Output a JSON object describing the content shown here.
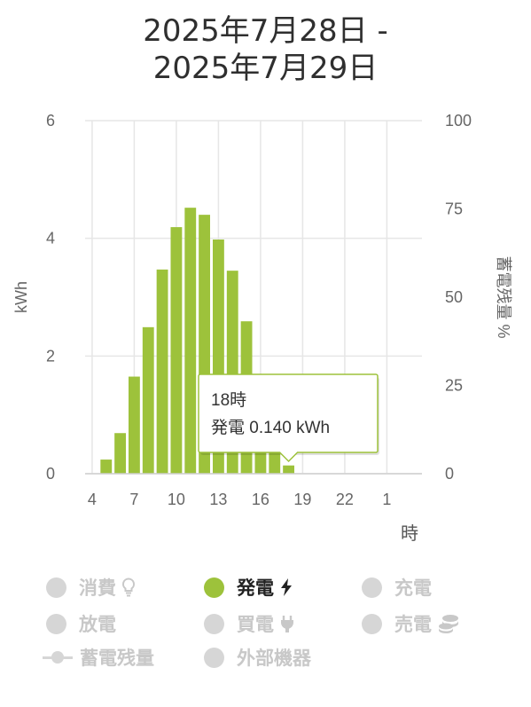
{
  "title": {
    "line1": "2025年7月28日 -",
    "line2": "2025年7月29日"
  },
  "chart_data": {
    "type": "bar",
    "categories": [
      "4",
      "5",
      "6",
      "7",
      "8",
      "9",
      "10",
      "11",
      "12",
      "13",
      "14",
      "15",
      "16",
      "17",
      "18",
      "19",
      "20",
      "21",
      "22",
      "23",
      "0",
      "1",
      "2",
      "3"
    ],
    "x_tick_labels": [
      "4",
      "7",
      "10",
      "13",
      "16",
      "19",
      "22",
      "1"
    ],
    "series": [
      {
        "name": "発電",
        "values": [
          0,
          0.24,
          0.69,
          1.65,
          2.49,
          3.47,
          4.19,
          4.52,
          4.4,
          3.98,
          3.45,
          2.59,
          1.57,
          0.7,
          0.14,
          0,
          0,
          0,
          0,
          0,
          0,
          0,
          0,
          0
        ]
      }
    ],
    "ylabel": "kWh",
    "ylim": [
      0,
      6
    ],
    "y_ticks": [
      "0",
      "2",
      "4",
      "6"
    ],
    "y2label": "蓄電残量 %",
    "y2lim": [
      0,
      100
    ],
    "y2_ticks": [
      "0",
      "25",
      "50",
      "75",
      "100"
    ],
    "xlabel": "時",
    "grid": true,
    "bar_color": "#9dc23b",
    "tooltip": {
      "category": "18",
      "line1": "18時",
      "line2": "発電 0.140 kWh"
    }
  },
  "legend": {
    "items": [
      {
        "label": "消費",
        "icon": "lightbulb-icon",
        "active": false
      },
      {
        "label": "発電",
        "icon": "lightning-icon",
        "active": true
      },
      {
        "label": "充電",
        "icon": "",
        "active": false
      },
      {
        "label": "放電",
        "icon": "",
        "active": false
      },
      {
        "label": "買電",
        "icon": "plug-icon",
        "active": false
      },
      {
        "label": "売電",
        "icon": "coins-icon",
        "active": false
      },
      {
        "label": "蓄電残量",
        "icon": "",
        "active": false
      },
      {
        "label": "外部機器",
        "icon": "",
        "active": false
      }
    ],
    "active_color": "#9dc23b",
    "inactive_color": "#d6d6d6"
  }
}
